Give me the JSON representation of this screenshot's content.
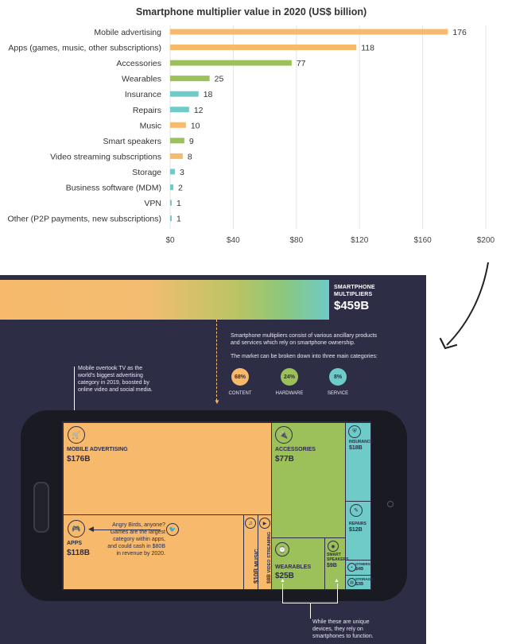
{
  "chart_data": {
    "type": "bar",
    "orientation": "horizontal",
    "title": "Smartphone multiplier value in 2020 (US$ billion)",
    "categories": [
      "Mobile advertising",
      "Apps (games, music, other subscriptions)",
      "Accessories",
      "Wearables",
      "Insurance",
      "Repairs",
      "Music",
      "Smart speakers",
      "Video streaming subscriptions",
      "Storage",
      "Business software (MDM)",
      "VPN",
      "Other (P2P payments, new subscriptions)"
    ],
    "values": [
      176,
      118,
      77,
      25,
      18,
      12,
      10,
      9,
      8,
      3,
      2,
      1,
      1
    ],
    "bar_colors": [
      "#f7b96b",
      "#f7b96b",
      "#9cc05a",
      "#9cc05a",
      "#6ecbc7",
      "#6ecbc7",
      "#f7b96b",
      "#9cc05a",
      "#f7b96b",
      "#6ecbc7",
      "#6ecbc7",
      "#6ecbc7",
      "#6ecbc7"
    ],
    "x_ticks": [
      "$0",
      "$40",
      "$80",
      "$120",
      "$160",
      "$200"
    ],
    "xlim": [
      0,
      200
    ],
    "grid": true,
    "xlabel": "",
    "ylabel": ""
  },
  "colors": {
    "orange": "#f7b96b",
    "green": "#9cc05a",
    "teal": "#6ecbc7",
    "navy": "#2e2d46"
  },
  "infographic": {
    "header_title_line1": "SMARTPHONE",
    "header_title_line2": "MULTIPLIERS",
    "header_total": "$459B",
    "intro_line1": "Smartphone multipliers consist of various ancillary products",
    "intro_line2": "and services which rely on smartphone ownership.",
    "categories_intro": "The market can be broken down into three main categories:",
    "shares": [
      {
        "pct": "68%",
        "label": "CONTENT"
      },
      {
        "pct": "24%",
        "label": "HARDWARE"
      },
      {
        "pct": "8%",
        "label": "SERVICE"
      }
    ],
    "note_tv": [
      "Mobile overtook TV as the",
      "world's biggest advertising",
      "category in 2019, boosted by",
      "online video and social media."
    ],
    "note_games": [
      "Angry Birds, anyone?",
      "Games are the largest",
      "category within apps,",
      "and could cash in $80B",
      "in revenue by 2020."
    ],
    "note_devices": [
      "While these are unique",
      "devices, they rely on",
      "smartphones to function."
    ],
    "tiles": {
      "mobile_advertising": {
        "label": "MOBILE ADVERTISING",
        "value": "$176B"
      },
      "apps": {
        "label": "APPS",
        "value": "$118B"
      },
      "music": {
        "label": "MUSIC",
        "value": "$10B"
      },
      "video_streaming": {
        "label": "VIDEO STREAMING",
        "value": "$8B"
      },
      "accessories": {
        "label": "ACCESSORIES",
        "value": "$77B"
      },
      "wearables": {
        "label": "WEARABLES",
        "value": "$25B"
      },
      "smart_speakers": {
        "label_line1": "SMART",
        "label_line2": "SPEAKERS",
        "value": "$9B"
      },
      "insurance": {
        "label": "INSURANCE",
        "value": "$18B"
      },
      "repairs": {
        "label": "REPAIRS",
        "value": "$12B"
      },
      "others": {
        "label": "OTHERS",
        "value": "$4B"
      },
      "storage": {
        "label": "STORAGE",
        "value": "$3B"
      }
    }
  }
}
